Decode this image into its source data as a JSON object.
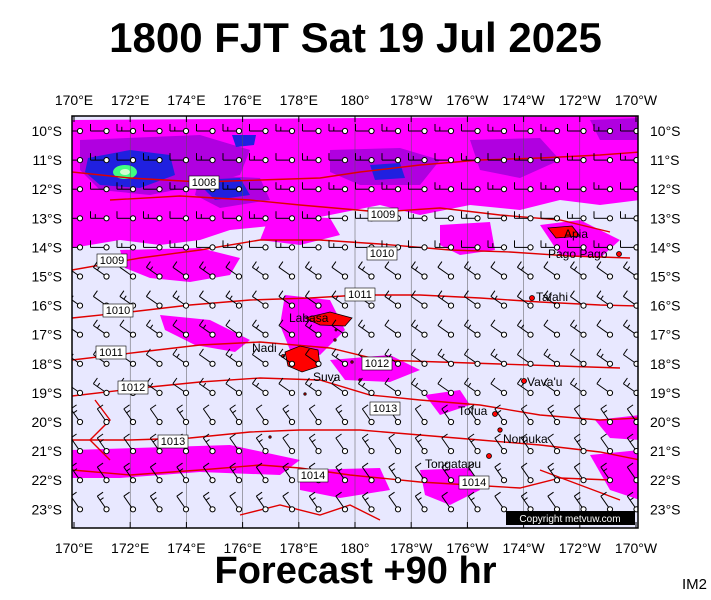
{
  "title": "1800 FJT Sat 19 Jul 2025",
  "footer": "Forecast +90 hr",
  "corner_label": "IM2",
  "copyright": "Copyright metvuw.com",
  "lon_labels": [
    "170°E",
    "172°E",
    "174°E",
    "176°E",
    "178°E",
    "180°",
    "178°W",
    "176°W",
    "174°W",
    "172°W",
    "170°W"
  ],
  "lat_labels": [
    "10°S",
    "11°S",
    "12°S",
    "13°S",
    "14°S",
    "15°S",
    "16°S",
    "17°S",
    "18°S",
    "19°S",
    "20°S",
    "21°S",
    "22°S",
    "23°S"
  ],
  "isobars": [
    {
      "label": "1008"
    },
    {
      "label": "1009"
    },
    {
      "label": "1009"
    },
    {
      "label": "1010"
    },
    {
      "label": "1010"
    },
    {
      "label": "1011"
    },
    {
      "label": "1011"
    },
    {
      "label": "1012"
    },
    {
      "label": "1012"
    },
    {
      "label": "1013"
    },
    {
      "label": "1013"
    },
    {
      "label": "1014"
    },
    {
      "label": "1014"
    }
  ],
  "places": [
    {
      "name": "Apia"
    },
    {
      "name": "Pago Pago"
    },
    {
      "name": "Tafahi"
    },
    {
      "name": "Labasa"
    },
    {
      "name": "Nadi"
    },
    {
      "name": "Suva"
    },
    {
      "name": "Vava'u"
    },
    {
      "name": "Tofua"
    },
    {
      "name": "Nomuka"
    },
    {
      "name": "Tongatapu"
    }
  ],
  "colors": {
    "background": "#e8e8ff",
    "precip_light": "#ff00ff",
    "precip_mid": "#b000e0",
    "precip_heavy": "#2020e0",
    "precip_core": "#40ff80",
    "isobar": "#e00000",
    "wind": "#000000",
    "land": "#ff0000"
  }
}
